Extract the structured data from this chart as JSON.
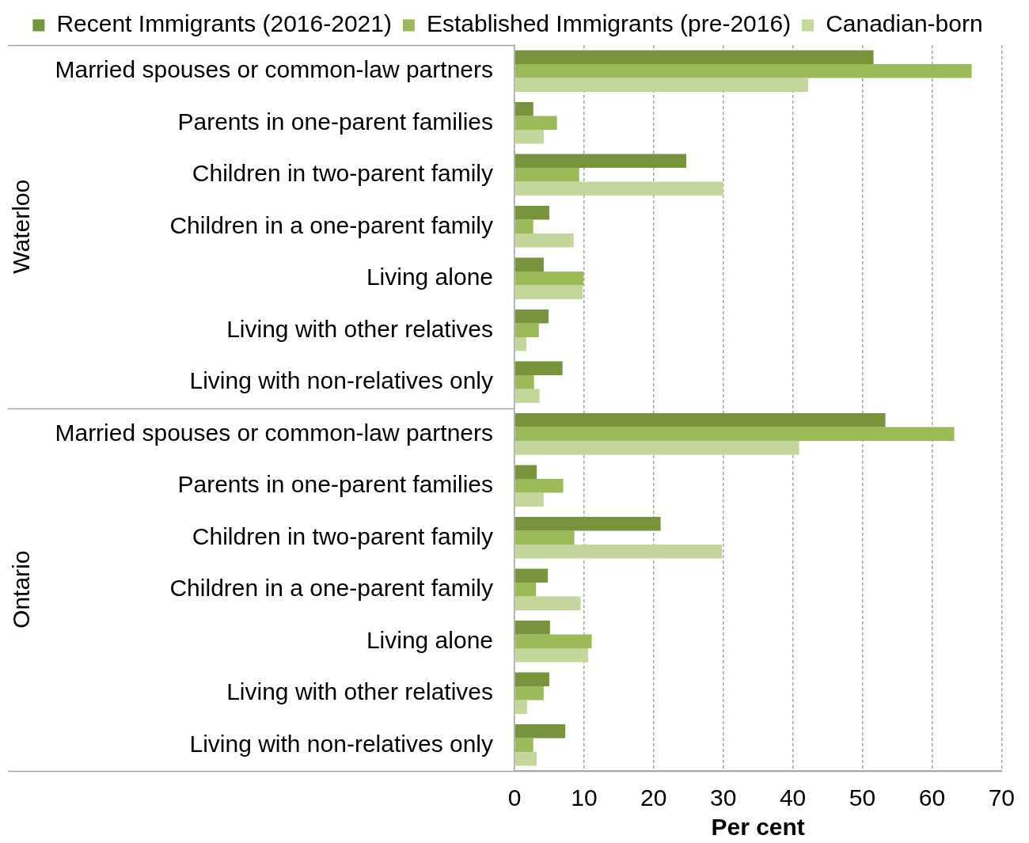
{
  "chart_data": {
    "type": "bar",
    "orientation": "horizontal",
    "categories": [
      "Married spouses or common-law partners",
      "Parents in one-parent families",
      "Children in two-parent family",
      "Children in a one-parent family",
      "Living alone",
      "Living with other relatives",
      "Living with non-relatives only",
      "Married spouses or common-law partners",
      "Parents in one-parent families",
      "Children in two-parent family",
      "Children in a one-parent family",
      "Living alone",
      "Living with other relatives",
      "Living with non-relatives only"
    ],
    "series": [
      {
        "name": "Recent Immigrants (2016-2021)",
        "color": "#77933c",
        "values": [
          51.6,
          2.7,
          24.7,
          5.0,
          4.2,
          4.9,
          6.9,
          53.3,
          3.2,
          21.0,
          4.8,
          5.1,
          5.0,
          7.3
        ]
      },
      {
        "name": "Established Immigrants (pre-2016)",
        "color": "#9bbb59",
        "values": [
          65.7,
          6.1,
          9.3,
          2.7,
          9.9,
          3.5,
          2.8,
          63.2,
          7.0,
          8.6,
          3.1,
          11.1,
          4.2,
          2.7
        ]
      },
      {
        "name": "Canadian-born",
        "color": "#c3d69b",
        "values": [
          42.2,
          4.2,
          30.0,
          8.5,
          9.8,
          1.7,
          3.6,
          40.9,
          4.2,
          29.8,
          9.5,
          10.6,
          1.8,
          3.2
        ]
      }
    ],
    "xlabel": "Per cent",
    "xlim": [
      0,
      70
    ],
    "xticks": [
      0,
      10,
      20,
      30,
      40,
      50,
      60,
      70
    ],
    "annotations": [
      "Waterloo",
      "Ontario"
    ],
    "grid": "x",
    "legend": "top"
  }
}
